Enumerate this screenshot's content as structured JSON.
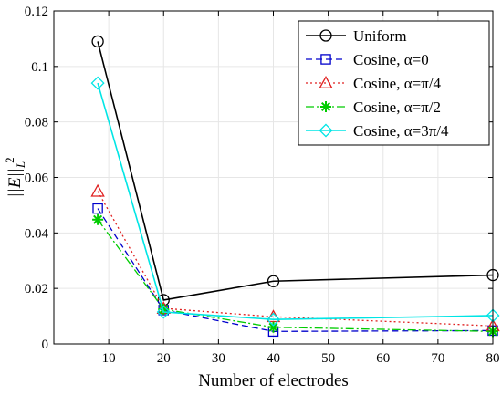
{
  "chart_data": {
    "type": "line",
    "xlabel": "Number of electrodes",
    "ylabel": "||E||",
    "ylabel_subscript": "L",
    "ylabel_superscript": "2",
    "xlim": [
      0,
      80
    ],
    "ylim": [
      0,
      0.12
    ],
    "x_ticks": [
      10,
      20,
      30,
      40,
      50,
      60,
      70,
      80
    ],
    "y_ticks": [
      0,
      0.02,
      0.04,
      0.06,
      0.08,
      0.1,
      0.12
    ],
    "y_tick_labels": [
      "0",
      "0.02",
      "0.04",
      "0.06",
      "0.08",
      "0.1",
      "0.12"
    ],
    "grid": true,
    "legend_position": "top-right",
    "x": [
      8,
      20,
      40,
      80
    ],
    "series": [
      {
        "name": "Uniform",
        "values": [
          0.109,
          0.0158,
          0.0226,
          0.0248
        ],
        "color": "#000000",
        "marker": "circle",
        "dash": "solid"
      },
      {
        "name": "Cosine, α=0",
        "values": [
          0.0488,
          0.0122,
          0.0045,
          0.0048
        ],
        "color": "#0000cc",
        "marker": "square",
        "dash": "dashed"
      },
      {
        "name": "Cosine, α=π/4",
        "values": [
          0.055,
          0.0128,
          0.0098,
          0.0065
        ],
        "color": "#e02020",
        "marker": "triangle",
        "dash": "dotted"
      },
      {
        "name": "Cosine, α=π/2",
        "values": [
          0.0448,
          0.0125,
          0.006,
          0.0045
        ],
        "color": "#00cc00",
        "marker": "asterisk",
        "dash": "dashdot"
      },
      {
        "name": "Cosine, α=3π/4",
        "values": [
          0.094,
          0.0115,
          0.0088,
          0.0102
        ],
        "color": "#00e5e5",
        "marker": "diamond",
        "dash": "solid"
      }
    ]
  }
}
